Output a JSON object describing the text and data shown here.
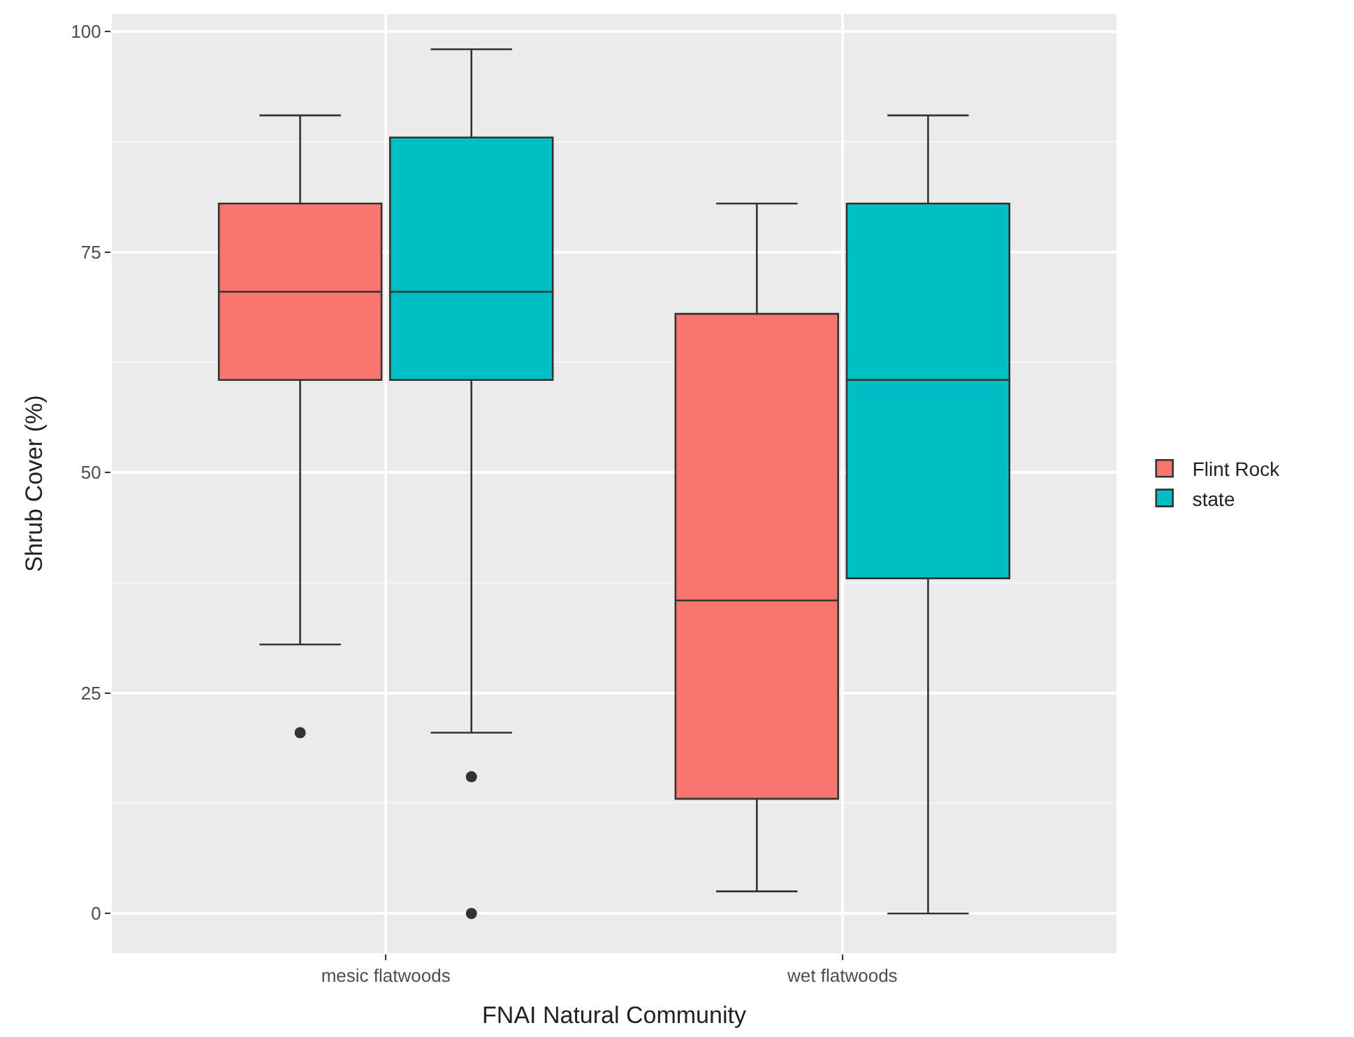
{
  "chart_data": {
    "type": "box",
    "xlabel": "FNAI Natural Community",
    "ylabel": "Shrub Cover (%)",
    "categories": [
      "mesic flatwoods",
      "wet flatwoods"
    ],
    "series": [
      {
        "name": "Flint Rock",
        "color": "#f8766d",
        "boxes": [
          {
            "low": 30.5,
            "q1": 60.5,
            "median": 70.5,
            "q3": 80.5,
            "high": 90.5,
            "outliers": [
              20.5
            ]
          },
          {
            "low": 2.5,
            "q1": 13,
            "median": 35.5,
            "q3": 68,
            "high": 80.5
          }
        ]
      },
      {
        "name": "state",
        "color": "#00bfc4",
        "boxes": [
          {
            "low": 20.5,
            "q1": 60.5,
            "median": 70.5,
            "q3": 88,
            "high": 98,
            "outliers": [
              15.5,
              0
            ]
          },
          {
            "low": 0,
            "q1": 38,
            "median": 60.5,
            "q3": 80.5,
            "high": 90.5
          }
        ]
      }
    ],
    "ylim": [
      -4.5,
      102
    ],
    "yticks": [
      0,
      25,
      50,
      75,
      100
    ],
    "grid": true,
    "legend": "right"
  }
}
